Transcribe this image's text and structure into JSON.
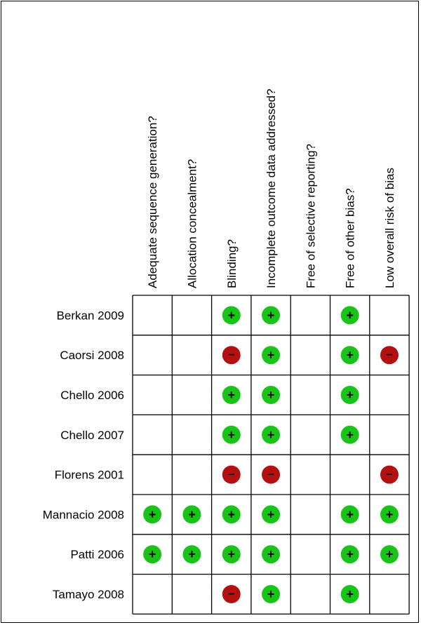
{
  "criteria": [
    "Adequate sequence generation?",
    "Allocation concealment?",
    "Blinding?",
    "Incomplete outcome data addressed?",
    "Free of selective reporting?",
    "Free of other bias?",
    "Low overall risk of bias"
  ],
  "studies": [
    {
      "name": "Berkan 2009",
      "ratings": [
        "",
        "",
        "+",
        "+",
        "",
        "+",
        ""
      ]
    },
    {
      "name": "Caorsi 2008",
      "ratings": [
        "",
        "",
        "-",
        "+",
        "",
        "+",
        "-"
      ]
    },
    {
      "name": "Chello 2006",
      "ratings": [
        "",
        "",
        "+",
        "+",
        "",
        "+",
        ""
      ]
    },
    {
      "name": "Chello 2007",
      "ratings": [
        "",
        "",
        "+",
        "+",
        "",
        "+",
        ""
      ]
    },
    {
      "name": "Florens 2001",
      "ratings": [
        "",
        "",
        "-",
        "-",
        "",
        "",
        "-"
      ]
    },
    {
      "name": "Mannacio 2008",
      "ratings": [
        "+",
        "+",
        "+",
        "+",
        "",
        "+",
        "+"
      ]
    },
    {
      "name": "Patti 2006",
      "ratings": [
        "+",
        "+",
        "+",
        "+",
        "",
        "+",
        "+"
      ]
    },
    {
      "name": "Tamayo 2008",
      "ratings": [
        "",
        "",
        "-",
        "+",
        "",
        "+",
        ""
      ]
    }
  ],
  "symbols": {
    "positive": "+",
    "negative": "−"
  },
  "colors": {
    "positive": "#19c419",
    "negative": "#b51010",
    "grid": "#000000"
  }
}
